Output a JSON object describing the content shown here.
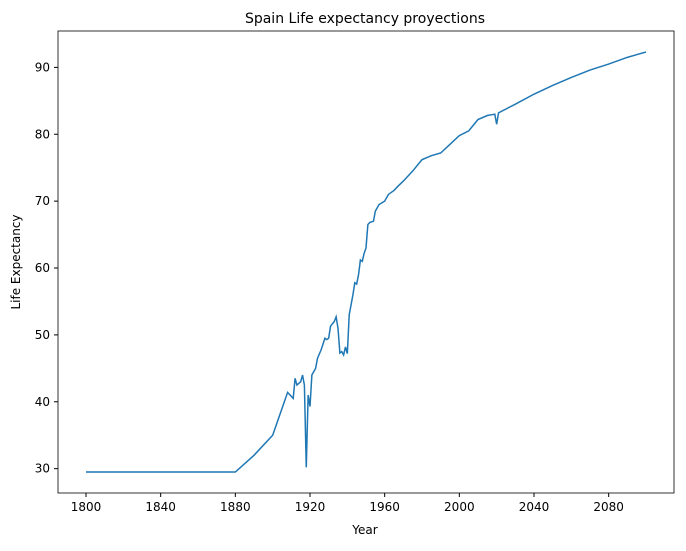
{
  "chart_data": {
    "type": "line",
    "title": "Spain Life expectancy proyections",
    "x_label": "Year",
    "y_label": "Life Expectancy",
    "x": [
      1800,
      1880,
      1890,
      1900,
      1905,
      1908,
      1911,
      1912,
      1913,
      1915,
      1916,
      1917,
      1918,
      1919,
      1920,
      1921,
      1923,
      1924,
      1926,
      1928,
      1929,
      1930,
      1931,
      1933,
      1934,
      1935,
      1936,
      1937,
      1938,
      1939,
      1940,
      1941,
      1943,
      1944,
      1945,
      1946,
      1947,
      1948,
      1949,
      1950,
      1951,
      1952,
      1954,
      1955,
      1957,
      1960,
      1962,
      1965,
      1967,
      1970,
      1975,
      1980,
      1985,
      1990,
      1995,
      2000,
      2005,
      2010,
      2015,
      2019,
      2020,
      2021,
      2030,
      2040,
      2050,
      2060,
      2070,
      2080,
      2090,
      2100
    ],
    "series": [
      {
        "name": "Life expectancy",
        "color": "#1f77b4",
        "values": [
          29.5,
          29.5,
          32,
          35,
          39,
          41.4,
          40.5,
          43.5,
          42.5,
          43,
          44,
          42.5,
          30.2,
          41,
          39.3,
          44,
          45,
          46.5,
          47.8,
          49.5,
          49.3,
          49.5,
          51.3,
          52,
          52.7,
          51,
          47.3,
          47.5,
          47,
          48.2,
          47.2,
          53,
          56,
          57.8,
          57.6,
          59,
          61.2,
          61,
          62.2,
          63,
          66.5,
          66.8,
          67,
          68.5,
          69.5,
          70,
          71,
          71.6,
          72.2,
          73,
          74.5,
          76.2,
          76.8,
          77.2,
          78.5,
          79.8,
          80.5,
          82.2,
          82.8,
          83,
          81.5,
          83.2,
          84.5,
          86,
          87.3,
          88.5,
          89.6,
          90.5,
          91.5,
          92.3
        ]
      }
    ],
    "xlim": [
      1785,
      2115
    ],
    "ylim": [
      26.36,
      95.44
    ],
    "xticks": [
      1800,
      1840,
      1880,
      1920,
      1960,
      2000,
      2040,
      2080
    ],
    "yticks": [
      30,
      40,
      50,
      60,
      70,
      80,
      90
    ]
  }
}
